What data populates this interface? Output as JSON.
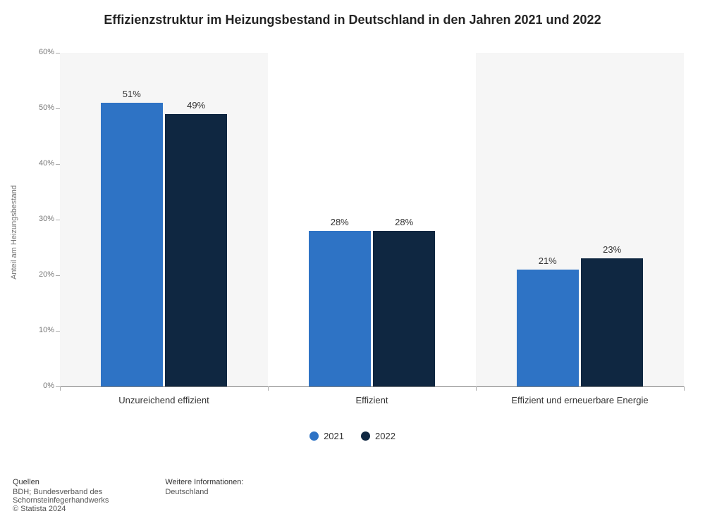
{
  "title": {
    "text": "Effizienzstruktur im Heizungsbestand in Deutschland in den Jahren 2021 und 2022",
    "fontsize": 18
  },
  "chart": {
    "type": "bar",
    "y_axis": {
      "label": "Anteil am Heizungsbestand",
      "min": 0,
      "max": 60,
      "tick_step": 10,
      "tick_suffix": "%",
      "label_fontsize": 11,
      "tick_fontsize": 11,
      "tick_color": "#777777"
    },
    "categories": [
      "Unzureichend effizient",
      "Effizient",
      "Effizient und erneuerbare Energie"
    ],
    "series": [
      {
        "name": "2021",
        "color": "#2e73c5",
        "values": [
          51,
          28,
          21
        ],
        "value_labels": [
          "51%",
          "28%",
          "21%"
        ]
      },
      {
        "name": "2022",
        "color": "#0f2741",
        "values": [
          49,
          28,
          23
        ],
        "value_labels": [
          "49%",
          "28%",
          "23%"
        ]
      }
    ],
    "bar_label_fontsize": 13,
    "category_fontsize": 13,
    "plot_background_bands": "#f6f6f6",
    "background_color": "#ffffff",
    "axis_color": "#808080"
  },
  "legend": {
    "items": [
      {
        "label": "2021",
        "color": "#2e73c5"
      },
      {
        "label": "2022",
        "color": "#0f2741"
      }
    ],
    "fontsize": 13
  },
  "footer": {
    "sources_heading": "Quellen",
    "sources_line1": "BDH; Bundesverband des",
    "sources_line2": "Schornsteinfegerhandwerks",
    "copyright": "© Statista 2024",
    "info_heading": "Weitere Informationen:",
    "info_text": "Deutschland"
  }
}
